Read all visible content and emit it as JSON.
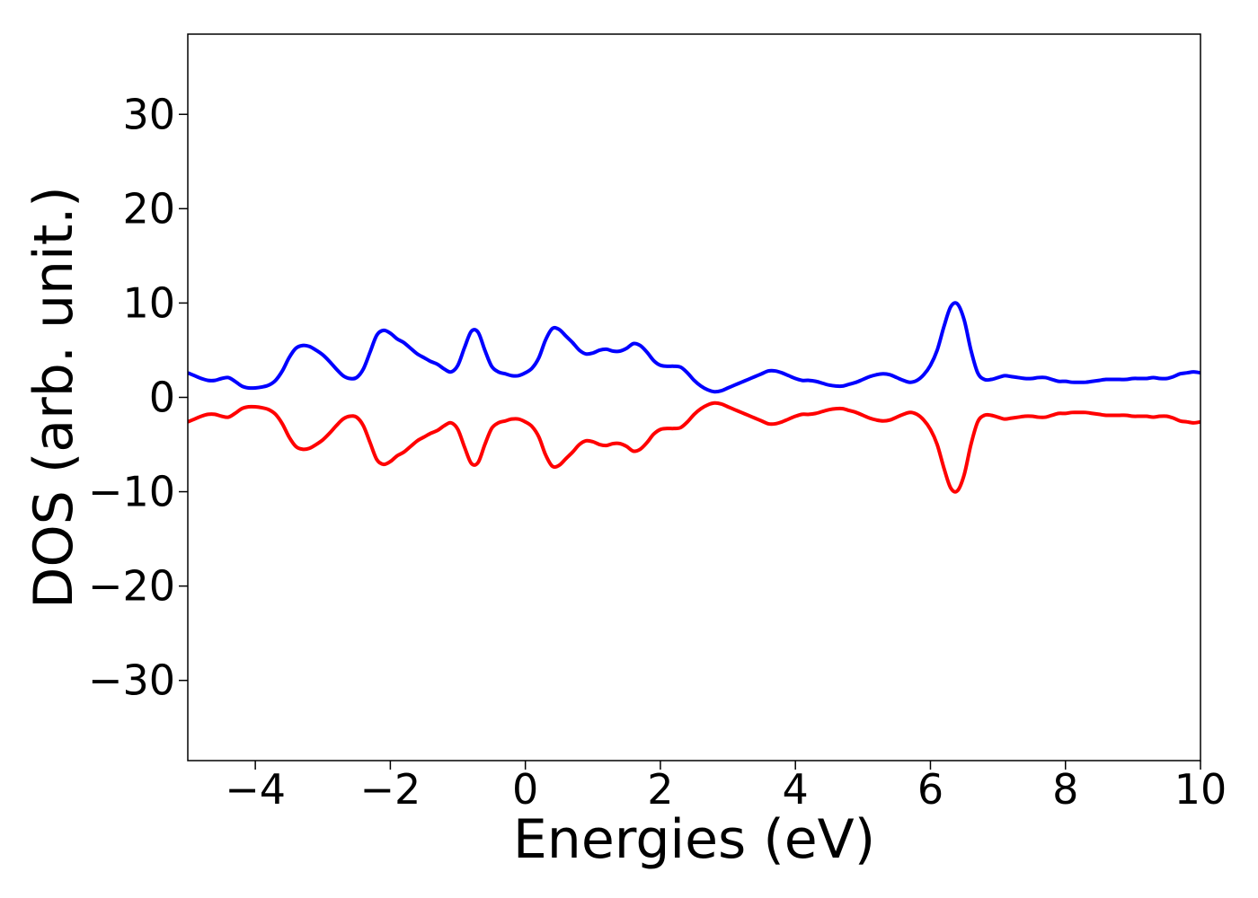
{
  "chart_data": {
    "type": "line",
    "title": "",
    "xlabel": "Energies (eV)",
    "ylabel": "DOS (arb. unit.)",
    "xlim": [
      -5,
      10
    ],
    "ylim": [
      -38.5,
      38.5
    ],
    "grid": false,
    "legend": "none",
    "x_ticks": [
      -4,
      -2,
      0,
      2,
      4,
      6,
      8,
      10
    ],
    "x_tick_labels": [
      "−4",
      "−2",
      "0",
      "2",
      "4",
      "6",
      "8",
      "10"
    ],
    "y_ticks": [
      30,
      20,
      10,
      0,
      -10,
      -20,
      -30
    ],
    "y_tick_labels": [
      "30",
      "20",
      "10",
      "0",
      "−10",
      "−20",
      "−30"
    ],
    "series": [
      {
        "color": "#0000ff",
        "x": [
          -5,
          -4.9,
          -4.8,
          -4.7,
          -4.6,
          -4.5,
          -4.4,
          -4.3,
          -4.2,
          -4.1,
          -4.0,
          -3.9,
          -3.8,
          -3.7,
          -3.6,
          -3.5,
          -3.4,
          -3.3,
          -3.2,
          -3.1,
          -3.0,
          -2.9,
          -2.8,
          -2.7,
          -2.6,
          -2.5,
          -2.4,
          -2.3,
          -2.2,
          -2.1,
          -2.0,
          -1.9,
          -1.8,
          -1.7,
          -1.6,
          -1.5,
          -1.4,
          -1.3,
          -1.2,
          -1.1,
          -1.0,
          -0.9,
          -0.8,
          -0.7,
          -0.6,
          -0.5,
          -0.4,
          -0.3,
          -0.2,
          -0.1,
          0.0,
          0.1,
          0.2,
          0.3,
          0.4,
          0.5,
          0.6,
          0.7,
          0.8,
          0.9,
          1.0,
          1.1,
          1.2,
          1.3,
          1.4,
          1.5,
          1.6,
          1.7,
          1.8,
          1.9,
          2.0,
          2.1,
          2.2,
          2.3,
          2.4,
          2.5,
          2.6,
          2.7,
          2.8,
          2.9,
          3.0,
          3.1,
          3.2,
          3.3,
          3.4,
          3.5,
          3.6,
          3.7,
          3.8,
          3.9,
          4.0,
          4.1,
          4.2,
          4.3,
          4.4,
          4.5,
          4.6,
          4.7,
          4.8,
          4.9,
          5.0,
          5.1,
          5.2,
          5.3,
          5.4,
          5.5,
          5.6,
          5.7,
          5.8,
          5.9,
          6.0,
          6.1,
          6.2,
          6.3,
          6.4,
          6.5,
          6.6,
          6.7,
          6.8,
          6.9,
          7.0,
          7.1,
          7.2,
          7.3,
          7.4,
          7.5,
          7.6,
          7.7,
          7.8,
          7.9,
          8.0,
          8.1,
          8.2,
          8.3,
          8.4,
          8.5,
          8.6,
          8.7,
          8.8,
          8.9,
          9.0,
          9.1,
          9.2,
          9.3,
          9.4,
          9.5,
          9.6,
          9.7,
          9.8,
          9.9,
          10.0
        ],
        "y": [
          2.6,
          2.3,
          2.0,
          1.8,
          1.8,
          2.0,
          2.1,
          1.7,
          1.2,
          1.0,
          1.0,
          1.1,
          1.3,
          1.8,
          2.8,
          4.2,
          5.2,
          5.5,
          5.4,
          5.0,
          4.5,
          3.8,
          3.0,
          2.3,
          2.0,
          2.1,
          3.0,
          4.8,
          6.6,
          7.1,
          6.8,
          6.2,
          5.8,
          5.2,
          4.6,
          4.2,
          3.8,
          3.5,
          3.0,
          2.7,
          3.4,
          5.3,
          7.0,
          6.9,
          5.0,
          3.3,
          2.7,
          2.5,
          2.3,
          2.3,
          2.6,
          3.1,
          4.2,
          6.1,
          7.3,
          7.2,
          6.5,
          5.8,
          5.0,
          4.6,
          4.7,
          5.0,
          5.1,
          4.9,
          4.9,
          5.2,
          5.7,
          5.5,
          4.8,
          3.9,
          3.4,
          3.3,
          3.3,
          3.2,
          2.6,
          1.8,
          1.2,
          0.8,
          0.6,
          0.7,
          1.0,
          1.3,
          1.6,
          1.9,
          2.2,
          2.5,
          2.8,
          2.8,
          2.6,
          2.3,
          2.0,
          1.8,
          1.8,
          1.7,
          1.5,
          1.3,
          1.2,
          1.2,
          1.4,
          1.6,
          1.9,
          2.2,
          2.4,
          2.5,
          2.4,
          2.1,
          1.8,
          1.6,
          1.8,
          2.4,
          3.4,
          5.0,
          7.5,
          9.6,
          9.9,
          8.2,
          5.0,
          2.6,
          1.9,
          1.9,
          2.1,
          2.3,
          2.2,
          2.1,
          2.0,
          2.0,
          2.1,
          2.1,
          1.9,
          1.7,
          1.7,
          1.6,
          1.6,
          1.6,
          1.7,
          1.8,
          1.9,
          1.9,
          1.9,
          1.9,
          2.0,
          2.0,
          2.0,
          2.1,
          2.0,
          2.0,
          2.2,
          2.5,
          2.6,
          2.7,
          2.6
        ]
      },
      {
        "color": "#ff0000",
        "x": [
          -5,
          -4.9,
          -4.8,
          -4.7,
          -4.6,
          -4.5,
          -4.4,
          -4.3,
          -4.2,
          -4.1,
          -4.0,
          -3.9,
          -3.8,
          -3.7,
          -3.6,
          -3.5,
          -3.4,
          -3.3,
          -3.2,
          -3.1,
          -3.0,
          -2.9,
          -2.8,
          -2.7,
          -2.6,
          -2.5,
          -2.4,
          -2.3,
          -2.2,
          -2.1,
          -2.0,
          -1.9,
          -1.8,
          -1.7,
          -1.6,
          -1.5,
          -1.4,
          -1.3,
          -1.2,
          -1.1,
          -1.0,
          -0.9,
          -0.8,
          -0.7,
          -0.6,
          -0.5,
          -0.4,
          -0.3,
          -0.2,
          -0.1,
          0.0,
          0.1,
          0.2,
          0.3,
          0.4,
          0.5,
          0.6,
          0.7,
          0.8,
          0.9,
          1.0,
          1.1,
          1.2,
          1.3,
          1.4,
          1.5,
          1.6,
          1.7,
          1.8,
          1.9,
          2.0,
          2.1,
          2.2,
          2.3,
          2.4,
          2.5,
          2.6,
          2.7,
          2.8,
          2.9,
          3.0,
          3.1,
          3.2,
          3.3,
          3.4,
          3.5,
          3.6,
          3.7,
          3.8,
          3.9,
          4.0,
          4.1,
          4.2,
          4.3,
          4.4,
          4.5,
          4.6,
          4.7,
          4.8,
          4.9,
          5.0,
          5.1,
          5.2,
          5.3,
          5.4,
          5.5,
          5.6,
          5.7,
          5.8,
          5.9,
          6.0,
          6.1,
          6.2,
          6.3,
          6.4,
          6.5,
          6.6,
          6.7,
          6.8,
          6.9,
          7.0,
          7.1,
          7.2,
          7.3,
          7.4,
          7.5,
          7.6,
          7.7,
          7.8,
          7.9,
          8.0,
          8.1,
          8.2,
          8.3,
          8.4,
          8.5,
          8.6,
          8.7,
          8.8,
          8.9,
          9.0,
          9.1,
          9.2,
          9.3,
          9.4,
          9.5,
          9.6,
          9.7,
          9.8,
          9.9,
          10.0
        ],
        "y": [
          -2.6,
          -2.3,
          -2.0,
          -1.8,
          -1.8,
          -2.0,
          -2.1,
          -1.7,
          -1.2,
          -1.0,
          -1.0,
          -1.1,
          -1.3,
          -1.8,
          -2.8,
          -4.2,
          -5.2,
          -5.5,
          -5.4,
          -5.0,
          -4.5,
          -3.8,
          -3.0,
          -2.3,
          -2.0,
          -2.1,
          -3.0,
          -4.8,
          -6.6,
          -7.1,
          -6.8,
          -6.2,
          -5.8,
          -5.2,
          -4.6,
          -4.2,
          -3.8,
          -3.5,
          -3.0,
          -2.7,
          -3.4,
          -5.3,
          -7.0,
          -6.9,
          -5.0,
          -3.3,
          -2.7,
          -2.5,
          -2.3,
          -2.3,
          -2.6,
          -3.1,
          -4.2,
          -6.1,
          -7.3,
          -7.2,
          -6.5,
          -5.8,
          -5.0,
          -4.6,
          -4.7,
          -5.0,
          -5.1,
          -4.9,
          -4.9,
          -5.2,
          -5.7,
          -5.5,
          -4.8,
          -3.9,
          -3.4,
          -3.3,
          -3.3,
          -3.2,
          -2.6,
          -1.8,
          -1.2,
          -0.8,
          -0.6,
          -0.7,
          -1.0,
          -1.3,
          -1.6,
          -1.9,
          -2.2,
          -2.5,
          -2.8,
          -2.8,
          -2.6,
          -2.3,
          -2.0,
          -1.8,
          -1.8,
          -1.7,
          -1.5,
          -1.3,
          -1.2,
          -1.2,
          -1.4,
          -1.6,
          -1.9,
          -2.2,
          -2.4,
          -2.5,
          -2.4,
          -2.1,
          -1.8,
          -1.6,
          -1.8,
          -2.4,
          -3.4,
          -5.0,
          -7.5,
          -9.6,
          -9.9,
          -8.2,
          -5.0,
          -2.6,
          -1.9,
          -1.9,
          -2.1,
          -2.3,
          -2.2,
          -2.1,
          -2.0,
          -2.0,
          -2.1,
          -2.1,
          -1.9,
          -1.7,
          -1.7,
          -1.6,
          -1.6,
          -1.6,
          -1.7,
          -1.8,
          -1.9,
          -1.9,
          -1.9,
          -1.9,
          -2.0,
          -2.0,
          -2.0,
          -2.1,
          -2.0,
          -2.0,
          -2.2,
          -2.5,
          -2.6,
          -2.7,
          -2.6
        ]
      }
    ]
  }
}
